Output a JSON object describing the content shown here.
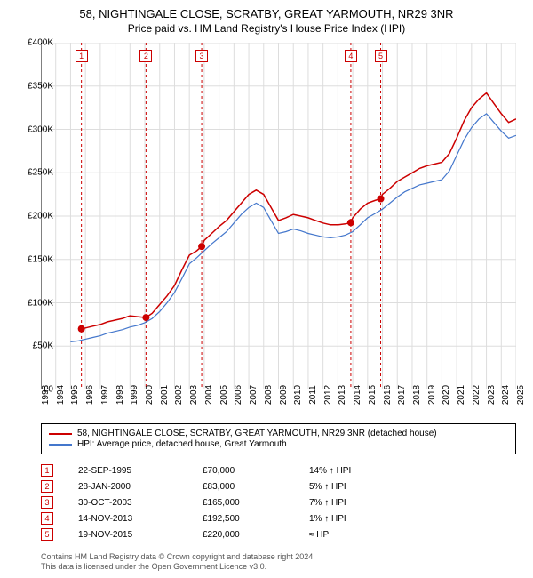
{
  "title": "58, NIGHTINGALE CLOSE, SCRATBY, GREAT YARMOUTH, NR29 3NR",
  "subtitle": "Price paid vs. HM Land Registry's House Price Index (HPI)",
  "chart": {
    "type": "line",
    "background_color": "#ffffff",
    "grid_color": "#dddddd",
    "axis_color": "#000000",
    "ylim": [
      0,
      400000
    ],
    "ytick_step": 50000,
    "ytick_labels": [
      "£0",
      "£50K",
      "£100K",
      "£150K",
      "£200K",
      "£250K",
      "£300K",
      "£350K",
      "£400K"
    ],
    "xlim": [
      1993,
      2025
    ],
    "xtick_labels": [
      "1993",
      "1994",
      "1995",
      "1996",
      "1997",
      "1998",
      "1999",
      "2000",
      "2001",
      "2002",
      "2003",
      "2004",
      "2005",
      "2006",
      "2007",
      "2008",
      "2009",
      "2010",
      "2011",
      "2012",
      "2013",
      "2014",
      "2015",
      "2016",
      "2017",
      "2018",
      "2019",
      "2020",
      "2021",
      "2022",
      "2023",
      "2024",
      "2025"
    ],
    "series1": {
      "name": "58, NIGHTINGALE CLOSE, SCRATBY, GREAT YARMOUTH, NR29 3NR (detached house)",
      "color": "#cc0000",
      "line_width": 1.5,
      "points": [
        [
          1995.73,
          70000
        ],
        [
          1996,
          71000
        ],
        [
          1996.5,
          73000
        ],
        [
          1997,
          75000
        ],
        [
          1997.5,
          78000
        ],
        [
          1998,
          80000
        ],
        [
          1998.5,
          82000
        ],
        [
          1999,
          85000
        ],
        [
          1999.5,
          84000
        ],
        [
          2000.08,
          83000
        ],
        [
          2000.5,
          88000
        ],
        [
          2001,
          98000
        ],
        [
          2001.5,
          108000
        ],
        [
          2002,
          120000
        ],
        [
          2002.5,
          138000
        ],
        [
          2003,
          155000
        ],
        [
          2003.5,
          160000
        ],
        [
          2003.83,
          165000
        ],
        [
          2004,
          172000
        ],
        [
          2004.5,
          180000
        ],
        [
          2005,
          188000
        ],
        [
          2005.5,
          195000
        ],
        [
          2006,
          205000
        ],
        [
          2006.5,
          215000
        ],
        [
          2007,
          225000
        ],
        [
          2007.5,
          230000
        ],
        [
          2008,
          225000
        ],
        [
          2008.5,
          210000
        ],
        [
          2009,
          195000
        ],
        [
          2009.5,
          198000
        ],
        [
          2010,
          202000
        ],
        [
          2010.5,
          200000
        ],
        [
          2011,
          198000
        ],
        [
          2011.5,
          195000
        ],
        [
          2012,
          192000
        ],
        [
          2012.5,
          190000
        ],
        [
          2013,
          190000
        ],
        [
          2013.5,
          191000
        ],
        [
          2013.87,
          192500
        ],
        [
          2014,
          198000
        ],
        [
          2014.5,
          208000
        ],
        [
          2015,
          215000
        ],
        [
          2015.5,
          218000
        ],
        [
          2015.88,
          220000
        ],
        [
          2016,
          225000
        ],
        [
          2016.5,
          232000
        ],
        [
          2017,
          240000
        ],
        [
          2017.5,
          245000
        ],
        [
          2018,
          250000
        ],
        [
          2018.5,
          255000
        ],
        [
          2019,
          258000
        ],
        [
          2019.5,
          260000
        ],
        [
          2020,
          262000
        ],
        [
          2020.5,
          272000
        ],
        [
          2021,
          290000
        ],
        [
          2021.5,
          310000
        ],
        [
          2022,
          325000
        ],
        [
          2022.5,
          335000
        ],
        [
          2023,
          342000
        ],
        [
          2023.5,
          330000
        ],
        [
          2024,
          318000
        ],
        [
          2024.5,
          308000
        ],
        [
          2025,
          312000
        ]
      ]
    },
    "series2": {
      "name": "HPI: Average price, detached house, Great Yarmouth",
      "color": "#4477cc",
      "line_width": 1.2,
      "points": [
        [
          1995,
          55000
        ],
        [
          1995.5,
          56000
        ],
        [
          1996,
          58000
        ],
        [
          1996.5,
          60000
        ],
        [
          1997,
          62000
        ],
        [
          1997.5,
          65000
        ],
        [
          1998,
          67000
        ],
        [
          1998.5,
          69000
        ],
        [
          1999,
          72000
        ],
        [
          1999.5,
          74000
        ],
        [
          2000,
          77000
        ],
        [
          2000.5,
          82000
        ],
        [
          2001,
          90000
        ],
        [
          2001.5,
          100000
        ],
        [
          2002,
          112000
        ],
        [
          2002.5,
          128000
        ],
        [
          2003,
          145000
        ],
        [
          2003.5,
          152000
        ],
        [
          2004,
          160000
        ],
        [
          2004.5,
          168000
        ],
        [
          2005,
          175000
        ],
        [
          2005.5,
          182000
        ],
        [
          2006,
          192000
        ],
        [
          2006.5,
          202000
        ],
        [
          2007,
          210000
        ],
        [
          2007.5,
          215000
        ],
        [
          2008,
          210000
        ],
        [
          2008.5,
          195000
        ],
        [
          2009,
          180000
        ],
        [
          2009.5,
          182000
        ],
        [
          2010,
          185000
        ],
        [
          2010.5,
          183000
        ],
        [
          2011,
          180000
        ],
        [
          2011.5,
          178000
        ],
        [
          2012,
          176000
        ],
        [
          2012.5,
          175000
        ],
        [
          2013,
          176000
        ],
        [
          2013.5,
          178000
        ],
        [
          2014,
          182000
        ],
        [
          2014.5,
          190000
        ],
        [
          2015,
          198000
        ],
        [
          2015.5,
          203000
        ],
        [
          2016,
          208000
        ],
        [
          2016.5,
          215000
        ],
        [
          2017,
          222000
        ],
        [
          2017.5,
          228000
        ],
        [
          2018,
          232000
        ],
        [
          2018.5,
          236000
        ],
        [
          2019,
          238000
        ],
        [
          2019.5,
          240000
        ],
        [
          2020,
          242000
        ],
        [
          2020.5,
          252000
        ],
        [
          2021,
          270000
        ],
        [
          2021.5,
          288000
        ],
        [
          2022,
          302000
        ],
        [
          2022.5,
          312000
        ],
        [
          2023,
          318000
        ],
        [
          2023.5,
          308000
        ],
        [
          2024,
          298000
        ],
        [
          2024.5,
          290000
        ],
        [
          2025,
          293000
        ]
      ]
    },
    "sale_markers": [
      {
        "n": 1,
        "x": 1995.73,
        "y": 70000
      },
      {
        "n": 2,
        "x": 2000.08,
        "y": 83000
      },
      {
        "n": 3,
        "x": 2003.83,
        "y": 165000
      },
      {
        "n": 4,
        "x": 2013.87,
        "y": 192500
      },
      {
        "n": 5,
        "x": 2015.88,
        "y": 220000
      }
    ],
    "marker_box_color": "#cc0000",
    "marker_dash_color": "#cc0000",
    "dot_color": "#cc0000"
  },
  "legend": {
    "items": [
      {
        "color": "#cc0000",
        "label": "58, NIGHTINGALE CLOSE, SCRATBY, GREAT YARMOUTH, NR29 3NR (detached house)"
      },
      {
        "color": "#4477cc",
        "label": "HPI: Average price, detached house, Great Yarmouth"
      }
    ]
  },
  "transactions": [
    {
      "n": 1,
      "date": "22-SEP-1995",
      "price": "£70,000",
      "hpi": "14% ↑ HPI"
    },
    {
      "n": 2,
      "date": "28-JAN-2000",
      "price": "£83,000",
      "hpi": "5% ↑ HPI"
    },
    {
      "n": 3,
      "date": "30-OCT-2003",
      "price": "£165,000",
      "hpi": "7% ↑ HPI"
    },
    {
      "n": 4,
      "date": "14-NOV-2013",
      "price": "£192,500",
      "hpi": "1% ↑ HPI"
    },
    {
      "n": 5,
      "date": "19-NOV-2015",
      "price": "£220,000",
      "hpi": "≈ HPI"
    }
  ],
  "footer_line1": "Contains HM Land Registry data © Crown copyright and database right 2024.",
  "footer_line2": "This data is licensed under the Open Government Licence v3.0."
}
